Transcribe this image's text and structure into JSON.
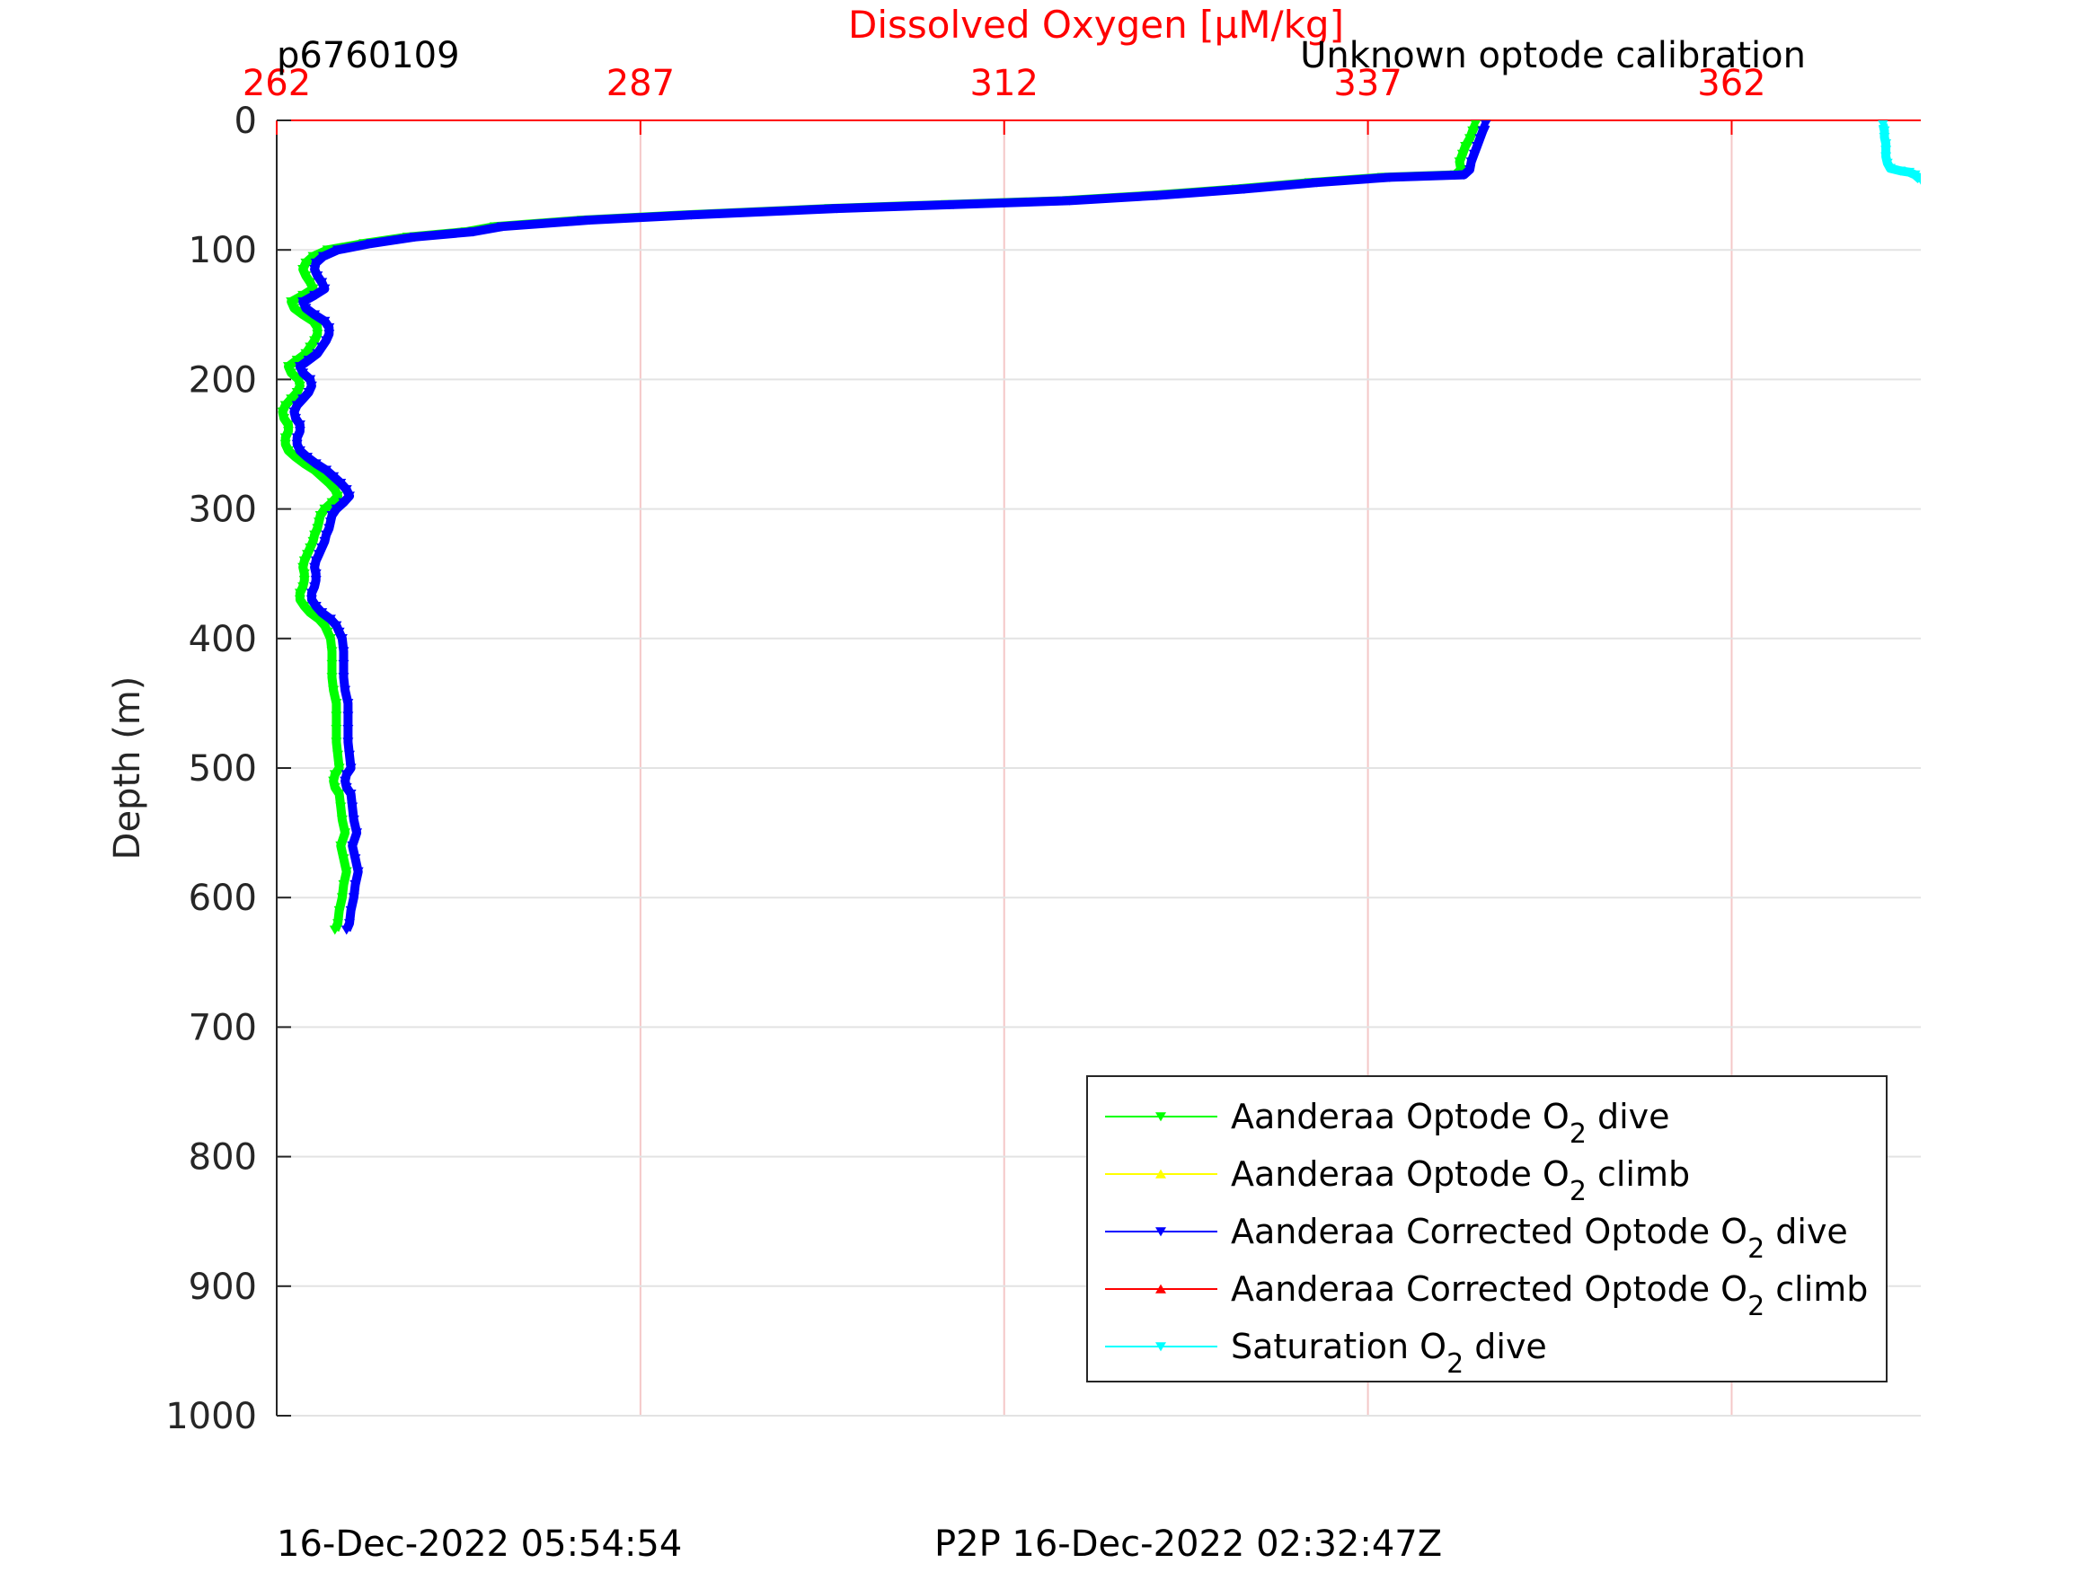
{
  "header": {
    "profile_id": "p6760109",
    "calibration_note": "Unknown optode calibration"
  },
  "footer": {
    "left_timestamp": "16-Dec-2022 05:54:54",
    "right_timestamp": "P2P 16-Dec-2022 02:32:47Z"
  },
  "chart_data": {
    "type": "line",
    "title": "",
    "xlabel": "Dissolved Oxygen [μM/kg]",
    "ylabel": "Depth (m)",
    "xlim": [
      262,
      375
    ],
    "ylim": [
      0,
      1000
    ],
    "y_reversed": true,
    "x_axis_position": "top",
    "x_ticks": [
      262,
      287,
      312,
      337,
      362
    ],
    "y_ticks": [
      0,
      100,
      200,
      300,
      400,
      500,
      600,
      700,
      800,
      900,
      1000
    ],
    "grid": true,
    "legend_position": "bottom-right",
    "colors": {
      "x_axis": "#ff0000",
      "y_axis": "#262626",
      "grid_x": "#f4c8c8",
      "grid_y": "#e3e3e3"
    },
    "series": [
      {
        "name": "Aanderaa Optode O",
        "name_sub": "2",
        "name_suffix": " dive",
        "color": "#00ff00",
        "marker": "triangle-down",
        "points": [
          [
            344.4,
            3
          ],
          [
            344.2,
            8
          ],
          [
            344.0,
            14
          ],
          [
            343.7,
            20
          ],
          [
            343.5,
            26
          ],
          [
            343.3,
            32
          ],
          [
            343.4,
            38
          ],
          [
            343.0,
            42
          ],
          [
            338.0,
            44
          ],
          [
            333.0,
            48
          ],
          [
            328.0,
            53
          ],
          [
            322.0,
            58
          ],
          [
            316.0,
            62
          ],
          [
            308.0,
            65
          ],
          [
            300.0,
            68
          ],
          [
            290.0,
            73
          ],
          [
            283.0,
            77
          ],
          [
            277.0,
            82
          ],
          [
            275.0,
            86
          ],
          [
            271.0,
            90
          ],
          [
            268.0,
            95
          ],
          [
            265.5,
            100
          ],
          [
            264.5,
            105
          ],
          [
            264.0,
            110
          ],
          [
            263.8,
            115
          ],
          [
            264.0,
            120
          ],
          [
            264.3,
            125
          ],
          [
            264.5,
            130
          ],
          [
            263.8,
            135
          ],
          [
            263.0,
            140
          ],
          [
            263.2,
            145
          ],
          [
            263.8,
            150
          ],
          [
            264.5,
            155
          ],
          [
            264.8,
            160
          ],
          [
            264.8,
            165
          ],
          [
            264.6,
            170
          ],
          [
            264.3,
            175
          ],
          [
            264.0,
            180
          ],
          [
            263.4,
            185
          ],
          [
            262.8,
            190
          ],
          [
            263.0,
            195
          ],
          [
            263.5,
            200
          ],
          [
            263.6,
            205
          ],
          [
            263.4,
            210
          ],
          [
            263.0,
            215
          ],
          [
            262.6,
            220
          ],
          [
            262.4,
            225
          ],
          [
            262.5,
            230
          ],
          [
            262.8,
            235
          ],
          [
            262.8,
            240
          ],
          [
            262.6,
            245
          ],
          [
            262.6,
            250
          ],
          [
            262.8,
            255
          ],
          [
            263.3,
            260
          ],
          [
            263.9,
            265
          ],
          [
            264.6,
            270
          ],
          [
            265.1,
            275
          ],
          [
            265.6,
            280
          ],
          [
            266.0,
            285
          ],
          [
            266.2,
            290
          ],
          [
            265.8,
            295
          ],
          [
            265.3,
            300
          ],
          [
            265.0,
            305
          ],
          [
            264.9,
            310
          ],
          [
            264.8,
            315
          ],
          [
            264.6,
            320
          ],
          [
            264.5,
            325
          ],
          [
            264.3,
            330
          ],
          [
            264.1,
            335
          ],
          [
            263.9,
            340
          ],
          [
            263.8,
            345
          ],
          [
            263.9,
            350
          ],
          [
            263.9,
            355
          ],
          [
            263.8,
            360
          ],
          [
            263.6,
            365
          ],
          [
            263.6,
            370
          ],
          [
            263.9,
            375
          ],
          [
            264.3,
            380
          ],
          [
            264.9,
            385
          ],
          [
            265.3,
            390
          ],
          [
            265.5,
            395
          ],
          [
            265.7,
            400
          ],
          [
            265.8,
            410
          ],
          [
            265.8,
            420
          ],
          [
            265.8,
            430
          ],
          [
            265.9,
            440
          ],
          [
            266.1,
            450
          ],
          [
            266.1,
            460
          ],
          [
            266.1,
            470
          ],
          [
            266.1,
            480
          ],
          [
            266.2,
            490
          ],
          [
            266.3,
            500
          ],
          [
            266.0,
            505
          ],
          [
            265.9,
            510
          ],
          [
            266.0,
            515
          ],
          [
            266.3,
            520
          ],
          [
            266.4,
            530
          ],
          [
            266.5,
            540
          ],
          [
            266.7,
            550
          ],
          [
            266.4,
            560
          ],
          [
            266.6,
            570
          ],
          [
            266.8,
            580
          ],
          [
            266.6,
            590
          ],
          [
            266.5,
            600
          ],
          [
            266.3,
            610
          ],
          [
            266.2,
            620
          ],
          [
            266.0,
            625
          ]
        ]
      },
      {
        "name": "Aanderaa Optode O",
        "name_sub": "2",
        "name_suffix": " climb",
        "color": "#ffff00",
        "marker": "triangle-up",
        "points": []
      },
      {
        "name": "Aanderaa Corrected Optode O",
        "name_sub": "2",
        "name_suffix": " dive",
        "color": "#0000ff",
        "marker": "triangle-down",
        "points": [
          [
            345.1,
            3
          ],
          [
            344.9,
            8
          ],
          [
            344.7,
            14
          ],
          [
            344.5,
            20
          ],
          [
            344.3,
            26
          ],
          [
            344.1,
            32
          ],
          [
            344.0,
            38
          ],
          [
            343.6,
            42
          ],
          [
            338.5,
            44
          ],
          [
            333.5,
            48
          ],
          [
            328.5,
            53
          ],
          [
            322.5,
            58
          ],
          [
            316.5,
            62
          ],
          [
            308.5,
            65
          ],
          [
            300.5,
            68
          ],
          [
            290.5,
            73
          ],
          [
            283.5,
            77
          ],
          [
            277.5,
            82
          ],
          [
            275.5,
            86
          ],
          [
            271.5,
            90
          ],
          [
            268.5,
            95
          ],
          [
            266.2,
            100
          ],
          [
            265.2,
            105
          ],
          [
            264.7,
            110
          ],
          [
            264.6,
            115
          ],
          [
            264.8,
            120
          ],
          [
            265.1,
            125
          ],
          [
            265.3,
            130
          ],
          [
            264.6,
            135
          ],
          [
            263.8,
            140
          ],
          [
            264.0,
            145
          ],
          [
            264.6,
            150
          ],
          [
            265.3,
            155
          ],
          [
            265.6,
            160
          ],
          [
            265.6,
            165
          ],
          [
            265.4,
            170
          ],
          [
            265.1,
            175
          ],
          [
            264.8,
            180
          ],
          [
            264.2,
            185
          ],
          [
            263.6,
            190
          ],
          [
            263.8,
            195
          ],
          [
            264.3,
            200
          ],
          [
            264.4,
            205
          ],
          [
            264.2,
            210
          ],
          [
            263.8,
            215
          ],
          [
            263.4,
            220
          ],
          [
            263.2,
            225
          ],
          [
            263.3,
            230
          ],
          [
            263.6,
            235
          ],
          [
            263.6,
            240
          ],
          [
            263.4,
            245
          ],
          [
            263.4,
            250
          ],
          [
            263.6,
            255
          ],
          [
            264.1,
            260
          ],
          [
            264.7,
            265
          ],
          [
            265.4,
            270
          ],
          [
            265.9,
            275
          ],
          [
            266.4,
            280
          ],
          [
            266.8,
            285
          ],
          [
            267.0,
            290
          ],
          [
            266.6,
            295
          ],
          [
            266.1,
            300
          ],
          [
            265.8,
            305
          ],
          [
            265.7,
            310
          ],
          [
            265.6,
            315
          ],
          [
            265.4,
            320
          ],
          [
            265.3,
            325
          ],
          [
            265.1,
            330
          ],
          [
            264.9,
            335
          ],
          [
            264.7,
            340
          ],
          [
            264.6,
            345
          ],
          [
            264.7,
            350
          ],
          [
            264.7,
            355
          ],
          [
            264.6,
            360
          ],
          [
            264.4,
            365
          ],
          [
            264.4,
            370
          ],
          [
            264.7,
            375
          ],
          [
            265.1,
            380
          ],
          [
            265.7,
            385
          ],
          [
            266.1,
            390
          ],
          [
            266.3,
            395
          ],
          [
            266.5,
            400
          ],
          [
            266.6,
            410
          ],
          [
            266.6,
            420
          ],
          [
            266.6,
            430
          ],
          [
            266.7,
            440
          ],
          [
            266.9,
            450
          ],
          [
            266.9,
            460
          ],
          [
            266.9,
            470
          ],
          [
            266.9,
            480
          ],
          [
            267.0,
            490
          ],
          [
            267.1,
            500
          ],
          [
            266.8,
            505
          ],
          [
            266.7,
            510
          ],
          [
            266.8,
            515
          ],
          [
            267.1,
            520
          ],
          [
            267.2,
            530
          ],
          [
            267.3,
            540
          ],
          [
            267.5,
            550
          ],
          [
            267.2,
            560
          ],
          [
            267.4,
            570
          ],
          [
            267.6,
            580
          ],
          [
            267.4,
            590
          ],
          [
            267.3,
            600
          ],
          [
            267.1,
            610
          ],
          [
            267.0,
            620
          ],
          [
            266.8,
            625
          ]
        ]
      },
      {
        "name": "Aanderaa Corrected Optode O",
        "name_sub": "2",
        "name_suffix": " climb",
        "color": "#ff0000",
        "marker": "triangle-up",
        "points": []
      },
      {
        "name": "Saturation O",
        "name_sub": "2",
        "name_suffix": " dive",
        "color": "#00ffff",
        "marker": "triangle-down",
        "points": [
          [
            372.4,
            3
          ],
          [
            372.5,
            8
          ],
          [
            372.5,
            13
          ],
          [
            372.6,
            18
          ],
          [
            372.6,
            23
          ],
          [
            372.6,
            28
          ],
          [
            372.7,
            33
          ],
          [
            372.9,
            37
          ],
          [
            373.6,
            39
          ],
          [
            374.2,
            40
          ],
          [
            374.6,
            42
          ],
          [
            374.8,
            44
          ],
          [
            375.0,
            46
          ]
        ]
      }
    ]
  }
}
